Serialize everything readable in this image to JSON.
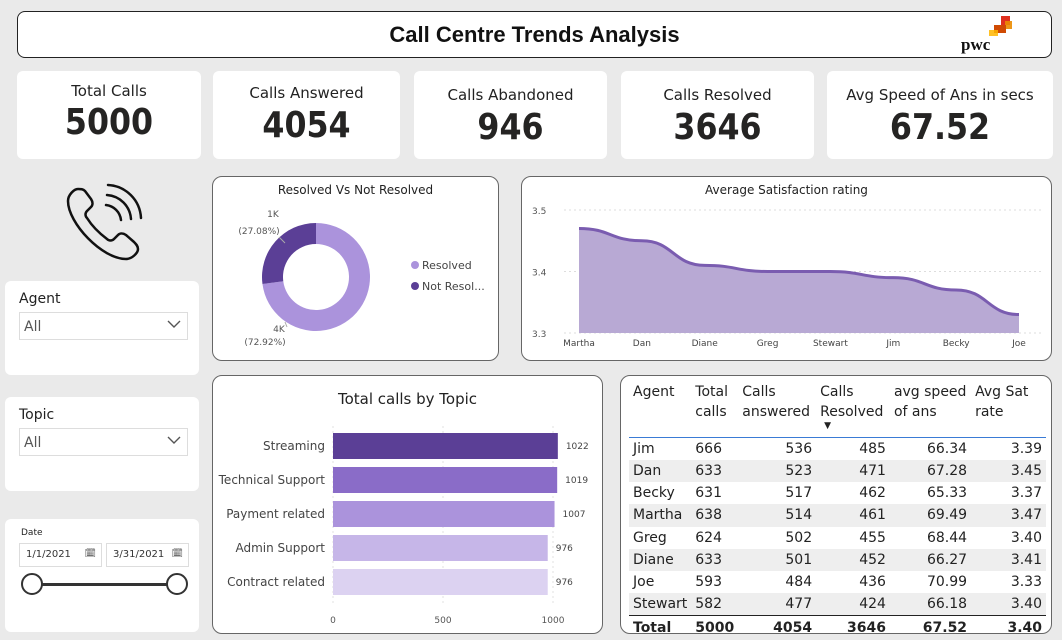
{
  "header": {
    "title": "Call Centre Trends Analysis",
    "logo_text": "pwc"
  },
  "kpis": [
    {
      "label": "Total Calls",
      "value": "5000"
    },
    {
      "label": "Calls Answered",
      "value": "4054"
    },
    {
      "label": "Calls Abandoned",
      "value": "946"
    },
    {
      "label": "Calls Resolved",
      "value": "3646"
    },
    {
      "label": "Avg Speed of Ans in secs",
      "value": "67.52"
    }
  ],
  "slicers": {
    "agent": {
      "label": "Agent",
      "value": "All"
    },
    "topic": {
      "label": "Topic",
      "value": "All"
    },
    "date": {
      "label": "Date",
      "start": "1/1/2021",
      "end": "3/31/2021",
      "range_fraction": [
        0,
        1
      ]
    }
  },
  "colors": {
    "dark_purple": "#5b3f96",
    "light_purple": "#ab93dc",
    "accent_blue": "#3a7bd5"
  },
  "chart_data": [
    {
      "type": "pie",
      "title": "Resolved Vs Not Resolved",
      "categories": [
        "Resolved",
        "Not Resol..."
      ],
      "values": [
        3646,
        1354
      ],
      "data_labels": [
        {
          "value": "4K",
          "pct": "(72.92%)"
        },
        {
          "value": "1K",
          "pct": "(27.08%)"
        }
      ],
      "colors": [
        "#ab93dc",
        "#5b3f96"
      ],
      "donut": true,
      "legend": "right"
    },
    {
      "type": "area",
      "title": "Average Satisfaction rating",
      "categories": [
        "Martha",
        "Dan",
        "Diane",
        "Greg",
        "Stewart",
        "Jim",
        "Becky",
        "Joe"
      ],
      "values": [
        3.47,
        3.45,
        3.41,
        3.4,
        3.4,
        3.39,
        3.37,
        3.33
      ],
      "ylim": [
        3.3,
        3.5
      ],
      "yticks": [
        "3.5",
        "3.4",
        "3.3"
      ],
      "grid": true,
      "line_color": "#7a5cb0",
      "fill_color": "#b8a9d4"
    },
    {
      "type": "bar",
      "orientation": "horizontal",
      "title": "Total calls by Topic",
      "categories": [
        "Streaming",
        "Technical Support",
        "Payment related",
        "Admin Support",
        "Contract related"
      ],
      "values": [
        1022,
        1019,
        1007,
        976,
        976
      ],
      "colors": [
        "#5b3f96",
        "#8a6cc8",
        "#ab93dc",
        "#c6b6e8",
        "#dcd2f1"
      ],
      "xlim": [
        0,
        1000
      ],
      "xticks": [
        "0",
        "500",
        "1000"
      ]
    },
    {
      "type": "table",
      "columns": [
        "Agent",
        "Total calls",
        "Calls answered",
        "Calls Resolved",
        "avg speed of ans",
        "Avg Sat rate"
      ],
      "rows": [
        [
          "Jim",
          "666",
          "536",
          "485",
          "66.34",
          "3.39"
        ],
        [
          "Dan",
          "633",
          "523",
          "471",
          "67.28",
          "3.45"
        ],
        [
          "Becky",
          "631",
          "517",
          "462",
          "65.33",
          "3.37"
        ],
        [
          "Martha",
          "638",
          "514",
          "461",
          "69.49",
          "3.47"
        ],
        [
          "Greg",
          "624",
          "502",
          "455",
          "68.44",
          "3.40"
        ],
        [
          "Diane",
          "633",
          "501",
          "452",
          "66.27",
          "3.41"
        ],
        [
          "Joe",
          "593",
          "484",
          "436",
          "70.99",
          "3.33"
        ],
        [
          "Stewart",
          "582",
          "477",
          "424",
          "66.18",
          "3.40"
        ]
      ],
      "totals": [
        "Total",
        "5000",
        "4054",
        "3646",
        "67.52",
        "3.40"
      ],
      "sorted_column": "Calls Resolved",
      "sort_direction": "descending"
    }
  ]
}
